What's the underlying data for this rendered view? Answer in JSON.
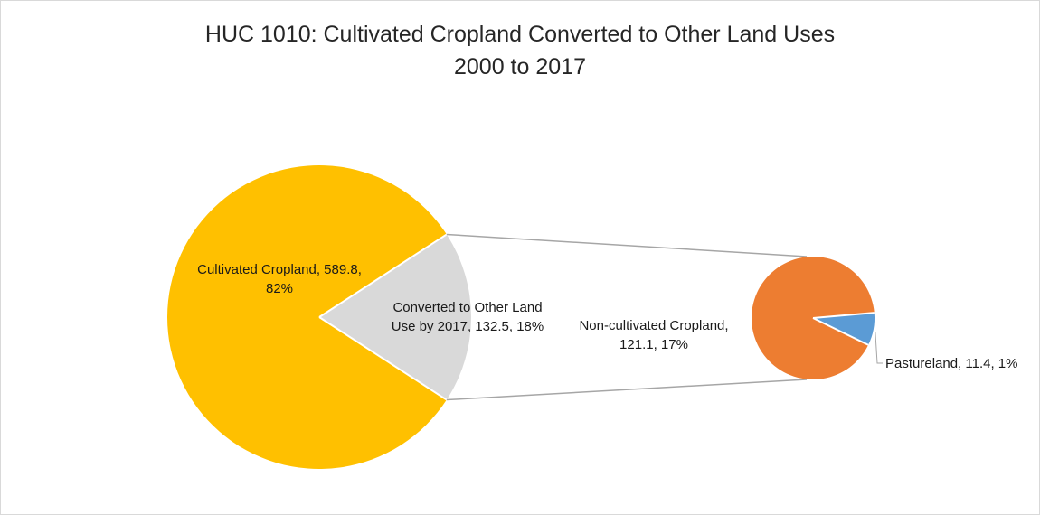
{
  "chart_data": {
    "type": "pie",
    "subtype": "pie-of-pie",
    "title": "HUC 1010: Cultivated Cropland Converted to Other Land Uses",
    "subtitle": "2000 to 2017",
    "main_pie": {
      "slices": [
        {
          "label": "Cultivated Cropland",
          "value": 589.8,
          "percent": "82%",
          "color": "#FFC000",
          "label_lines": [
            "Cultivated Cropland, 589.8,",
            "82%"
          ]
        },
        {
          "label": "Converted to Other Land Use by 2017",
          "value": 132.5,
          "percent": "18%",
          "color": "#D9D9D9",
          "label_lines": [
            "Converted to Other Land",
            "Use by 2017, 132.5, 18%"
          ]
        }
      ]
    },
    "secondary_pie": {
      "slices": [
        {
          "label": "Non-cultivated Cropland",
          "value": 121.1,
          "percent": "17%",
          "color": "#ED7D31",
          "label_lines": [
            "Non-cultivated Cropland,",
            "121.1, 17%"
          ]
        },
        {
          "label": "Pastureland",
          "value": 11.4,
          "percent": "1%",
          "color": "#5B9BD5",
          "label_lines": [
            "Pastureland, 11.4, 1%"
          ]
        }
      ]
    },
    "connector_color": "#A6A6A6",
    "leader_color": "#A6A6A6"
  }
}
